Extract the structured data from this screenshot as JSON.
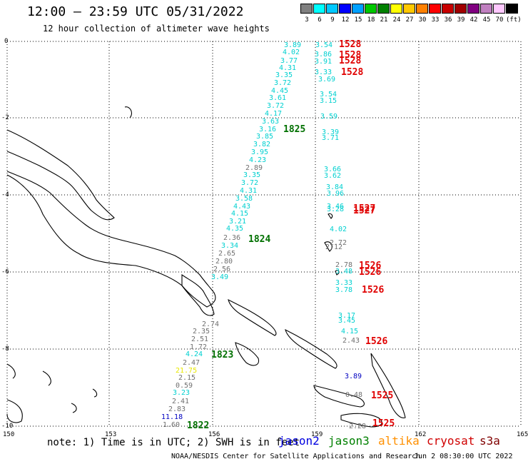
{
  "title": "12:00 – 23:59 UTC 05/31/2022",
  "subtitle": "12 hour collection of altimeter wave heights",
  "colorbar": {
    "colors": [
      "#808080",
      "#00ffff",
      "#00c8ff",
      "#0000ff",
      "#00a0ff",
      "#00c800",
      "#008000",
      "#ffff00",
      "#ffc800",
      "#ff8000",
      "#ff0000",
      "#c80000",
      "#a00000",
      "#800080",
      "#c080c0",
      "#ffc8ff",
      "#000000"
    ],
    "labels": [
      "3",
      "6",
      "9",
      "12",
      "15",
      "18",
      "21",
      "24",
      "27",
      "30",
      "33",
      "36",
      "39",
      "42",
      "45",
      "70",
      "(ft)"
    ]
  },
  "axes": {
    "x_ticks": [
      "150",
      "153",
      "156",
      "159",
      "162",
      "165"
    ],
    "y_ticks": [
      "0",
      "-2",
      "-4",
      "-6",
      "-8",
      "-10"
    ]
  },
  "passes": [
    {
      "label": "1528",
      "color": "#e00000"
    },
    {
      "label": "1528",
      "color": "#e00000"
    },
    {
      "label": "1528",
      "color": "#e00000"
    },
    {
      "label": "1528",
      "color": "#e00000"
    },
    {
      "label": "1825",
      "color": "#007000"
    },
    {
      "label": "1527",
      "color": "#e00000"
    },
    {
      "label": "1527",
      "color": "#e00000"
    },
    {
      "label": "1824",
      "color": "#007000"
    },
    {
      "label": "1526",
      "color": "#e00000"
    },
    {
      "label": "1526",
      "color": "#e00000"
    },
    {
      "label": "1526",
      "color": "#e00000"
    },
    {
      "label": "1526",
      "color": "#e00000"
    },
    {
      "label": "1823",
      "color": "#007000"
    },
    {
      "label": "1525",
      "color": "#e00000"
    },
    {
      "label": "1525",
      "color": "#e00000"
    },
    {
      "label": "1822",
      "color": "#007000"
    }
  ],
  "measurements": [
    {
      "v": "3.89",
      "c": "#00d0d0"
    },
    {
      "v": "4.02",
      "c": "#00d0d0"
    },
    {
      "v": "3.77",
      "c": "#00d0d0"
    },
    {
      "v": "4.31",
      "c": "#00d0d0"
    },
    {
      "v": "3.35",
      "c": "#00d0d0"
    },
    {
      "v": "3.72",
      "c": "#00d0d0"
    },
    {
      "v": "4.45",
      "c": "#00d0d0"
    },
    {
      "v": "3.61",
      "c": "#00d0d0"
    },
    {
      "v": "3.72",
      "c": "#00d0d0"
    },
    {
      "v": "4.17",
      "c": "#00d0d0"
    },
    {
      "v": "3.63",
      "c": "#00d0d0"
    },
    {
      "v": "3.16",
      "c": "#00d0d0"
    },
    {
      "v": "3.85",
      "c": "#00d0d0"
    },
    {
      "v": "3.82",
      "c": "#00d0d0"
    },
    {
      "v": "3.95",
      "c": "#00d0d0"
    },
    {
      "v": "4.23",
      "c": "#00d0d0"
    },
    {
      "v": "2.89",
      "c": "#707070"
    },
    {
      "v": "3.35",
      "c": "#00d0d0"
    },
    {
      "v": "3.72",
      "c": "#00d0d0"
    },
    {
      "v": "4.31",
      "c": "#00d0d0"
    },
    {
      "v": "3.58",
      "c": "#00d0d0"
    },
    {
      "v": "4.43",
      "c": "#00d0d0"
    },
    {
      "v": "4.15",
      "c": "#00d0d0"
    },
    {
      "v": "3.21",
      "c": "#00d0d0"
    },
    {
      "v": "4.35",
      "c": "#00d0d0"
    },
    {
      "v": "2.36",
      "c": "#707070"
    },
    {
      "v": "3.34",
      "c": "#00d0d0"
    },
    {
      "v": "2.65",
      "c": "#707070"
    },
    {
      "v": "2.80",
      "c": "#707070"
    },
    {
      "v": "2.56",
      "c": "#707070"
    },
    {
      "v": "3.49",
      "c": "#00d0d0"
    },
    {
      "v": "2.74",
      "c": "#707070"
    },
    {
      "v": "2.35",
      "c": "#707070"
    },
    {
      "v": "2.51",
      "c": "#707070"
    },
    {
      "v": "1.72",
      "c": "#707070"
    },
    {
      "v": "4.24",
      "c": "#00d0d0"
    },
    {
      "v": "2.47",
      "c": "#707070"
    },
    {
      "v": "21.75",
      "c": "#e8e800"
    },
    {
      "v": "2.15",
      "c": "#707070"
    },
    {
      "v": "0.59",
      "c": "#707070"
    },
    {
      "v": "3.23",
      "c": "#00d0d0"
    },
    {
      "v": "2.41",
      "c": "#707070"
    },
    {
      "v": "2.83",
      "c": "#707070"
    },
    {
      "v": "11.18",
      "c": "#0000c0"
    },
    {
      "v": "1.60",
      "c": "#707070"
    },
    {
      "v": "3.54",
      "c": "#00d0d0"
    },
    {
      "v": "3.86",
      "c": "#00d0d0"
    },
    {
      "v": "3.91",
      "c": "#00d0d0"
    },
    {
      "v": "3.33",
      "c": "#00d0d0"
    },
    {
      "v": "3.69",
      "c": "#00d0d0"
    },
    {
      "v": "3.54",
      "c": "#00d0d0"
    },
    {
      "v": "3.15",
      "c": "#00d0d0"
    },
    {
      "v": "3.59",
      "c": "#00d0d0"
    },
    {
      "v": "3.39",
      "c": "#00d0d0"
    },
    {
      "v": "3.71",
      "c": "#00d0d0"
    },
    {
      "v": "3.66",
      "c": "#00d0d0"
    },
    {
      "v": "3.62",
      "c": "#00d0d0"
    },
    {
      "v": "3.84",
      "c": "#00d0d0"
    },
    {
      "v": "3.96",
      "c": "#00d0d0"
    },
    {
      "v": "3.46",
      "c": "#00d0d0"
    },
    {
      "v": "3.28",
      "c": "#00d0d0"
    },
    {
      "v": "4.02",
      "c": "#00d0d0"
    },
    {
      "v": "2.72",
      "c": "#707070"
    },
    {
      "v": "2.12",
      "c": "#707070"
    },
    {
      "v": "2.78",
      "c": "#707070"
    },
    {
      "v": "3.48",
      "c": "#00d0d0"
    },
    {
      "v": "3.33",
      "c": "#00d0d0"
    },
    {
      "v": "3.78",
      "c": "#00d0d0"
    },
    {
      "v": "3.17",
      "c": "#00d0d0"
    },
    {
      "v": "3.45",
      "c": "#00d0d0"
    },
    {
      "v": "4.15",
      "c": "#00d0d0"
    },
    {
      "v": "2.43",
      "c": "#707070"
    },
    {
      "v": "3.89",
      "c": "#0000c0"
    },
    {
      "v": "0.48",
      "c": "#707070"
    },
    {
      "v": "2.28",
      "c": "#707070"
    }
  ],
  "footer": {
    "note": "note: 1) Time is in UTC; 2) SWH is in feet",
    "legend": [
      {
        "name": "jason2",
        "color": "#0000e0"
      },
      {
        "name": "jason3",
        "color": "#008000"
      },
      {
        "name": "altika",
        "color": "#ff9000"
      },
      {
        "name": "cryosat",
        "color": "#d00000"
      },
      {
        "name": "s3a",
        "color": "#800000"
      }
    ],
    "credit": "NOAA/NESDIS Center for Satellite Applications and Research",
    "timestamp": "Jun  2 08:30:00 UTC 2022"
  }
}
